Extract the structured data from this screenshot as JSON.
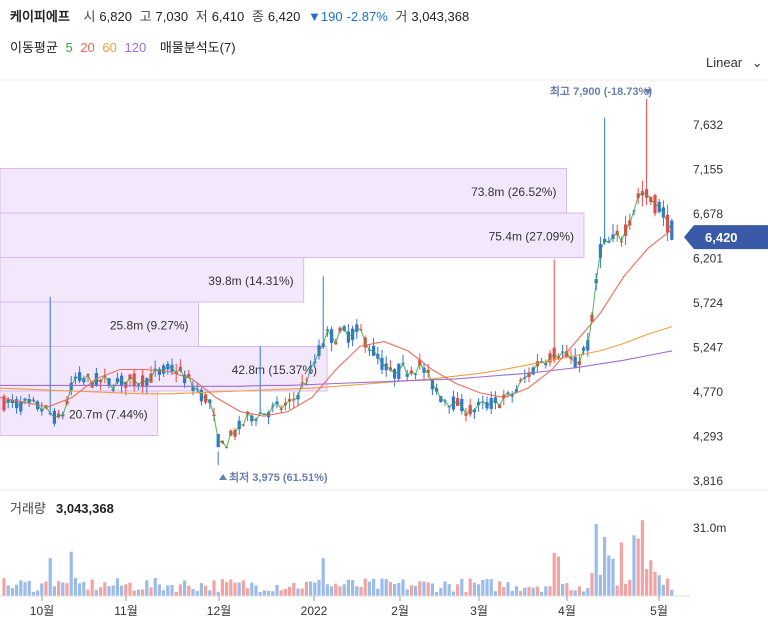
{
  "header": {
    "stock_name": "케이피에프",
    "open_label": "시",
    "open": "6,820",
    "high_label": "고",
    "high": "7,030",
    "low_label": "저",
    "low": "6,410",
    "close_label": "종",
    "close": "6,420",
    "change": "▼190",
    "change_pct": "-2.87%",
    "volume_label": "거",
    "volume": "3,043,368"
  },
  "indicators": {
    "ma_label": "이동평균",
    "ma_periods": [
      "5",
      "20",
      "60",
      "120"
    ],
    "ma_colors": [
      "#3aa33a",
      "#f06a5a",
      "#f0a040",
      "#9b6fd6"
    ],
    "profile_label": "매물분석도(7)"
  },
  "scale_button": "Linear",
  "volume_panel": {
    "label": "거래량",
    "value": "3,043,368",
    "axis_label": "31.0m"
  },
  "colors": {
    "up": "#e84a4a",
    "down": "#2f74d8",
    "profile_fill": "#f3e8fb",
    "profile_stroke": "#d9b9ef",
    "price_tag": "#3a5aa8"
  },
  "chart_data": {
    "type": "candlestick",
    "y_ticks": [
      "7,632",
      "7,155",
      "6,678",
      "6,201",
      "5,724",
      "5,247",
      "4,770",
      "4,293",
      "3,816"
    ],
    "y_range": [
      3816,
      7900
    ],
    "x_ticks": [
      "10월",
      "11월",
      "12월",
      "2022",
      "2월",
      "3월",
      "4월",
      "5월"
    ],
    "last_price": "6,420",
    "max_annotation": "최고 7,900 (-18.73%)",
    "min_annotation": "최저 3,975 (61.51%)",
    "volume_profile": [
      {
        "label": "73.8m (26.52%)",
        "low": 6678,
        "high": 7155,
        "share": 0.97
      },
      {
        "label": "75.4m (27.09%)",
        "low": 6201,
        "high": 6678,
        "share": 1.0
      },
      {
        "label": "39.8m (14.31%)",
        "low": 5724,
        "high": 6201,
        "share": 0.52
      },
      {
        "label": "25.8m (9.27%)",
        "low": 5247,
        "high": 5724,
        "share": 0.34
      },
      {
        "label": "42.8m (15.37%)",
        "low": 4770,
        "high": 5247,
        "share": 0.56
      },
      {
        "label": "20.7m (7.44%)",
        "low": 4293,
        "high": 4770,
        "share": 0.27
      }
    ],
    "ma_series": [
      {
        "name": "60",
        "values": [
          4800,
          4790,
          4780,
          4770,
          4760,
          4750,
          4740,
          4740,
          4750,
          4760,
          4770,
          4780,
          4790,
          4800,
          4820,
          4840,
          4860,
          4880,
          4900,
          4930,
          4960,
          5000,
          5050,
          5100,
          5150,
          5200,
          5280,
          5380,
          5460
        ]
      },
      {
        "name": "120",
        "values": [
          4830,
          4830,
          4830,
          4830,
          4830,
          4830,
          4820,
          4820,
          4820,
          4820,
          4820,
          4830,
          4830,
          4840,
          4850,
          4860,
          4870,
          4880,
          4890,
          4900,
          4920,
          4940,
          4960,
          4990,
          5020,
          5060,
          5100,
          5150,
          5200
        ]
      },
      {
        "name": "20",
        "values": [
          4700,
          4650,
          4600,
          4700,
          4900,
          5000,
          5000,
          4980,
          4900,
          4700,
          4550,
          4500,
          4550,
          4700,
          5000,
          5250,
          5300,
          5200,
          5000,
          4850,
          4750,
          4700,
          4800,
          5000,
          5300,
          5600,
          6000,
          6300,
          6500
        ]
      }
    ]
  }
}
